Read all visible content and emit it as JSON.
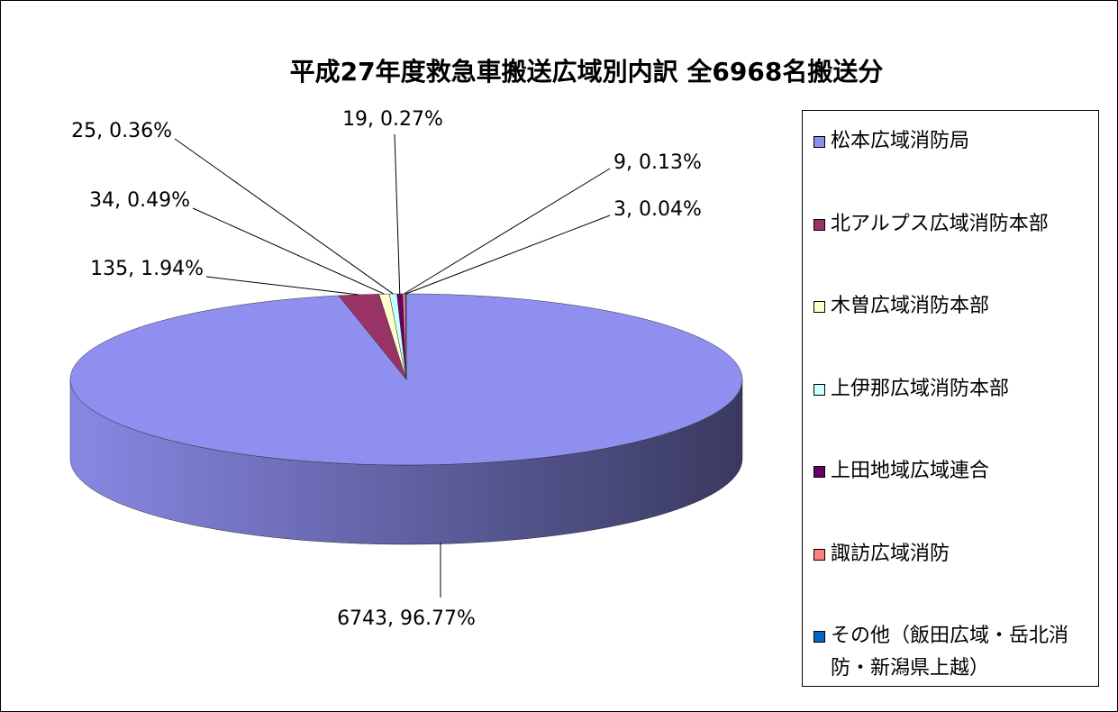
{
  "chart_data": {
    "type": "pie3d",
    "title": "平成27年度救急車搬送広域別内訳  全6968名搬送分",
    "categories": [
      "松本広域消防局",
      "北アルプス広域消防本部",
      "木曽広域消防本部",
      "上伊那広域消防本部",
      "上田地域広域連合",
      "諏訪広域消防",
      "その他（飯田広域・岳北消防・新潟県上越）"
    ],
    "values": [
      6743,
      135,
      34,
      25,
      19,
      9,
      3
    ],
    "value_labels": [
      "6743, 96.77%",
      "135, 1.94%",
      "34, 0.49%",
      "25, 0.36%",
      "19, 0.27%",
      "9, 0.13%",
      "3, 0.04%"
    ],
    "colors": [
      "#8f8ff0",
      "#993366",
      "#ffffcc",
      "#ccffff",
      "#660066",
      "#ff8080",
      "#0066cc"
    ],
    "legend": "right"
  }
}
